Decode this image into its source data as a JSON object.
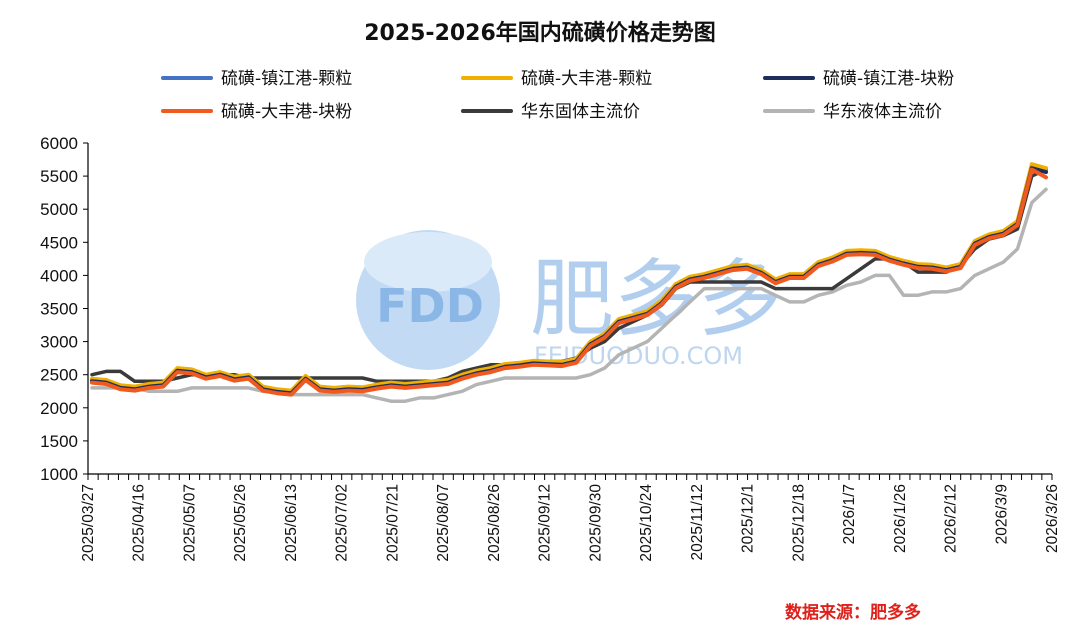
{
  "chart_data": {
    "type": "line",
    "title": "2025-2026年国内硫磺价格走势图",
    "xlabel": "",
    "ylabel": "",
    "ylim": [
      1000,
      6000
    ],
    "yticks": [
      1000,
      1500,
      2000,
      2500,
      3000,
      3500,
      4000,
      4500,
      5000,
      5500,
      6000
    ],
    "x_tick_labels": [
      "2025/03/27",
      "2025/04/16",
      "2025/05/07",
      "2025/05/26",
      "2025/06/13",
      "2025/07/02",
      "2025/07/21",
      "2025/08/07",
      "2025/08/26",
      "2025/09/12",
      "2025/09/30",
      "2025/10/24",
      "2025/11/12",
      "2025/12/1",
      "2025/12/18",
      "2026/1/7",
      "2026/1/26",
      "2026/2/12",
      "2026/3/9",
      "2026/3/26"
    ],
    "legend_position": "top",
    "series": [
      {
        "name": "硫磺-镇江港-颗粒",
        "color": "#4472c4",
        "values": [
          2420,
          2400,
          2320,
          2300,
          2340,
          2360,
          2580,
          2560,
          2480,
          2520,
          2450,
          2480,
          2300,
          2260,
          2240,
          2460,
          2300,
          2280,
          2300,
          2290,
          2330,
          2360,
          2340,
          2360,
          2380,
          2400,
          2480,
          2540,
          2580,
          2640,
          2660,
          2690,
          2680,
          2670,
          2720,
          2980,
          3100,
          3320,
          3380,
          3440,
          3600,
          3850,
          3960,
          4000,
          4060,
          4120,
          4140,
          4060,
          3920,
          4000,
          4000,
          4180,
          4250,
          4350,
          4360,
          4350,
          4260,
          4200,
          4150,
          4140,
          4100,
          4150,
          4500,
          4600,
          4650,
          4800,
          5650,
          5600
        ]
      },
      {
        "name": "硫磺-大丰港-颗粒",
        "color": "#f0b000",
        "values": [
          2440,
          2420,
          2340,
          2320,
          2360,
          2380,
          2600,
          2580,
          2500,
          2540,
          2470,
          2500,
          2320,
          2280,
          2260,
          2480,
          2320,
          2300,
          2320,
          2310,
          2350,
          2380,
          2360,
          2380,
          2400,
          2420,
          2500,
          2560,
          2600,
          2660,
          2680,
          2710,
          2700,
          2690,
          2740,
          3000,
          3120,
          3340,
          3400,
          3460,
          3620,
          3870,
          3980,
          4020,
          4080,
          4140,
          4160,
          4080,
          3940,
          4020,
          4020,
          4200,
          4270,
          4370,
          4380,
          4370,
          4280,
          4220,
          4170,
          4160,
          4120,
          4170,
          4520,
          4620,
          4670,
          4820,
          5680,
          5620
        ]
      },
      {
        "name": "硫磺-镇江港-块粉",
        "color": "#1f2d5c",
        "values": [
          2400,
          2380,
          2300,
          2280,
          2320,
          2340,
          2560,
          2540,
          2460,
          2500,
          2430,
          2460,
          2280,
          2240,
          2220,
          2440,
          2280,
          2260,
          2280,
          2270,
          2310,
          2340,
          2320,
          2340,
          2360,
          2380,
          2460,
          2520,
          2560,
          2620,
          2640,
          2670,
          2660,
          2650,
          2700,
          2960,
          3080,
          3300,
          3360,
          3420,
          3580,
          3830,
          3940,
          3980,
          4040,
          4100,
          4120,
          4040,
          3900,
          3980,
          3980,
          4160,
          4230,
          4330,
          4340,
          4330,
          4240,
          4180,
          4130,
          4120,
          4080,
          4130,
          4480,
          4580,
          4630,
          4780,
          5620,
          5560
        ]
      },
      {
        "name": "硫磺-大丰港-块粉",
        "color": "#f05a1e",
        "values": [
          2380,
          2360,
          2280,
          2260,
          2300,
          2320,
          2540,
          2520,
          2440,
          2480,
          2410,
          2440,
          2260,
          2220,
          2200,
          2420,
          2260,
          2240,
          2260,
          2250,
          2290,
          2320,
          2300,
          2320,
          2340,
          2360,
          2440,
          2500,
          2540,
          2600,
          2620,
          2650,
          2640,
          2630,
          2680,
          2940,
          3060,
          3280,
          3340,
          3400,
          3560,
          3810,
          3920,
          3960,
          4020,
          4080,
          4100,
          4020,
          3880,
          3960,
          3960,
          4140,
          4210,
          4310,
          4320,
          4310,
          4220,
          4160,
          4110,
          4100,
          4060,
          4110,
          4460,
          4560,
          4610,
          4760,
          5600,
          5480
        ]
      },
      {
        "name": "华东固体主流价",
        "color": "#3a3a3a",
        "values": [
          2500,
          2550,
          2550,
          2400,
          2400,
          2400,
          2450,
          2500,
          2500,
          2500,
          2500,
          2450,
          2450,
          2450,
          2450,
          2450,
          2450,
          2450,
          2450,
          2450,
          2400,
          2400,
          2400,
          2400,
          2400,
          2450,
          2550,
          2600,
          2650,
          2650,
          2650,
          2700,
          2700,
          2700,
          2750,
          2900,
          3000,
          3200,
          3300,
          3400,
          3550,
          3800,
          3900,
          3900,
          3900,
          3900,
          3900,
          3900,
          3800,
          3800,
          3800,
          3800,
          3800,
          3950,
          4100,
          4250,
          4250,
          4200,
          4050,
          4050,
          4050,
          4150,
          4400,
          4550,
          4600,
          4700,
          5500,
          5600
        ]
      },
      {
        "name": "华东液体主流价",
        "color": "#b4b4b4",
        "values": [
          2300,
          2300,
          2300,
          2300,
          2250,
          2250,
          2250,
          2300,
          2300,
          2300,
          2300,
          2300,
          2250,
          2250,
          2200,
          2200,
          2200,
          2200,
          2200,
          2200,
          2150,
          2100,
          2100,
          2150,
          2150,
          2200,
          2250,
          2350,
          2400,
          2450,
          2450,
          2450,
          2450,
          2450,
          2450,
          2500,
          2600,
          2800,
          2900,
          3000,
          3200,
          3400,
          3600,
          3800,
          3800,
          3800,
          3800,
          3800,
          3700,
          3600,
          3600,
          3700,
          3750,
          3850,
          3900,
          4000,
          4000,
          3700,
          3700,
          3750,
          3750,
          3800,
          4000,
          4100,
          4200,
          4400,
          5100,
          5300
        ]
      }
    ]
  },
  "watermark": {
    "logo_text": "FDD",
    "brand_text": "肥多多",
    "domain_text": "FEIDUODUO.COM"
  },
  "source": {
    "text": "数据来源：肥多多"
  }
}
